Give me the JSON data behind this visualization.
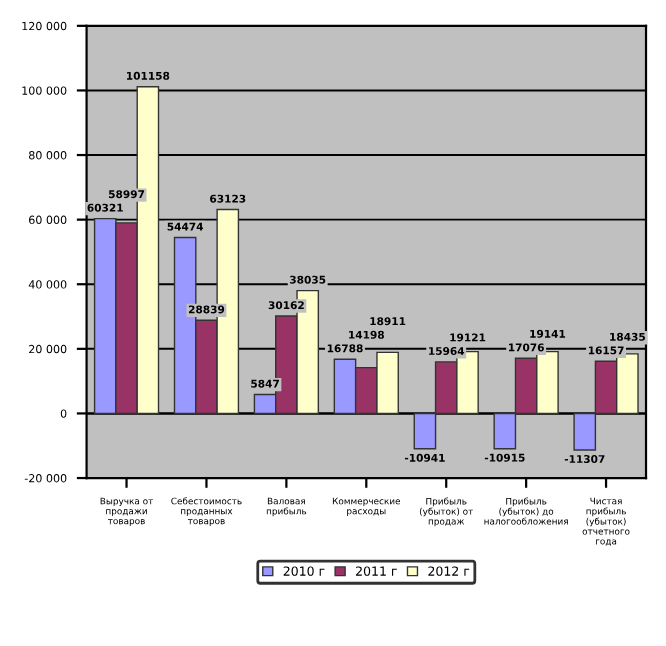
{
  "chart_data": {
    "type": "bar",
    "categories": [
      "Выручка от продажи товаров",
      "Себестоимость проданных товаров",
      "Валовая прибыль",
      "Коммерческие расходы",
      "Прибыль (убыток) от продаж",
      "Прибыль (убыток) до налогообложения",
      "Чистая прибыль (убыток) отчетного года"
    ],
    "series": [
      {
        "name": "2010 г",
        "color": "#9999ff",
        "values": [
          60321,
          54474,
          5847,
          16788,
          -10941,
          -10915,
          -11307
        ]
      },
      {
        "name": "2011 г",
        "color": "#993366",
        "values": [
          58997,
          28839,
          30162,
          14198,
          15964,
          17076,
          16157
        ]
      },
      {
        "name": "2012 г",
        "color": "#ffffcc",
        "values": [
          101158,
          63123,
          38035,
          18911,
          19121,
          19141,
          18435
        ]
      }
    ],
    "ylim": [
      -20000,
      120000
    ],
    "yticks": [
      {
        "value": -20000,
        "label": "-20 000"
      },
      {
        "value": 0,
        "label": "0"
      },
      {
        "value": 20000,
        "label": "20 000"
      },
      {
        "value": 40000,
        "label": "40 000"
      },
      {
        "value": 60000,
        "label": "60 000"
      },
      {
        "value": 80000,
        "label": "80 000"
      },
      {
        "value": 100000,
        "label": "100 000"
      },
      {
        "value": 120000,
        "label": "120 000"
      }
    ],
    "grid": "y",
    "legend": "bottom",
    "data_labels": true
  }
}
